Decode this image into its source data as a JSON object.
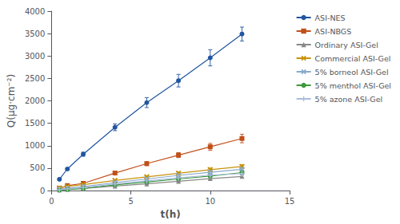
{
  "chart_data": {
    "type": "line",
    "xlabel": "t(h)",
    "ylabel": "Q(μg·cm⁻²)",
    "x": [
      0.5,
      1,
      2,
      4,
      6,
      8,
      10,
      12
    ],
    "xlim": [
      0,
      15
    ],
    "xticks": [
      0,
      5,
      10,
      15
    ],
    "ylim": [
      0,
      4000
    ],
    "yticks": [
      0,
      500,
      1000,
      1500,
      2000,
      2500,
      3000,
      3500,
      4000
    ],
    "grid": false,
    "legend": "right",
    "series": [
      {
        "name": "ASI-NES",
        "color": "#2155A0",
        "marker": "circle",
        "values": [
          250,
          480,
          810,
          1410,
          1960,
          2450,
          2960,
          3490
        ],
        "errors": [
          18,
          25,
          45,
          75,
          110,
          140,
          180,
          155
        ]
      },
      {
        "name": "ASI-NBGS",
        "color": "#C0501A",
        "marker": "square",
        "values": [
          50,
          110,
          160,
          390,
          600,
          790,
          975,
          1160
        ],
        "errors": [
          8,
          16,
          22,
          35,
          45,
          55,
          75,
          95
        ]
      },
      {
        "name": "Ordinary ASI-Gel",
        "color": "#888888",
        "marker": "triangle",
        "values": [
          12,
          25,
          48,
          100,
          148,
          205,
          265,
          315
        ],
        "errors": [
          4,
          6,
          8,
          12,
          15,
          18,
          22,
          26
        ]
      },
      {
        "name": "Commercial ASI-Gel",
        "color": "#C8920A",
        "marker": "x",
        "values": [
          60,
          90,
          130,
          225,
          305,
          385,
          465,
          535
        ],
        "errors": [
          7,
          10,
          13,
          20,
          27,
          32,
          37,
          42
        ]
      },
      {
        "name": "5% borneol ASI-Gel",
        "color": "#88AACC",
        "marker": "x",
        "values": [
          28,
          50,
          88,
          178,
          258,
          338,
          408,
          475
        ],
        "errors": [
          5,
          8,
          12,
          17,
          22,
          27,
          31,
          37
        ]
      },
      {
        "name": "5% menthol ASI-Gel",
        "color": "#3A9A3A",
        "marker": "circle",
        "values": [
          8,
          20,
          45,
          125,
          190,
          258,
          322,
          400
        ],
        "errors": [
          3,
          6,
          9,
          13,
          18,
          22,
          25,
          32
        ]
      },
      {
        "name": "5% azone ASI-Gel",
        "color": "#AABBDD",
        "marker": "plus",
        "values": [
          18,
          36,
          64,
          148,
          215,
          282,
          342,
          378
        ],
        "errors": [
          4,
          7,
          10,
          16,
          20,
          25,
          29,
          32
        ]
      }
    ]
  }
}
